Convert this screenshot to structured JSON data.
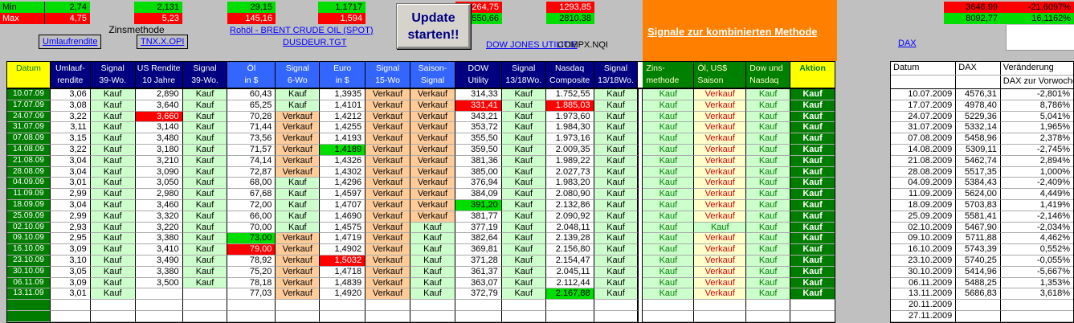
{
  "top": {
    "min_label": "Min",
    "max_label": "Max",
    "minmax": {
      "umlauf": {
        "min": "2,74",
        "max": "4,75"
      },
      "us_rendite": {
        "min": "2,131",
        "max": "5,23"
      },
      "oil": {
        "min": "29,15",
        "max": "145,16"
      },
      "euro": {
        "min": "1,1717",
        "max": "1,594"
      },
      "dow": {
        "min": "264,75",
        "max": "550,66"
      },
      "nasdaq": {
        "min": "1293,85",
        "max": "2810,38"
      },
      "dax": {
        "min": "3646,99",
        "max": "8092,77",
        "min_pct": "-21,6097%",
        "max_pct": "16,1162%"
      }
    },
    "zinsmethode_label": "Zinsmethode",
    "links": {
      "umlaufrendite": "Umlaufrendite",
      "tnx": "TNX.X.OPI",
      "rohoel": "Rohöl - BRENT CRUDE OIL (SPOT)",
      "dusdeur": "DUSDEUR.TGT",
      "dow_jones": "DOW JONES UTILITIE",
      "dax": "DAX"
    },
    "compx_label": "COMPX.NQI",
    "update_button": {
      "line1": "Update",
      "line2": "starten!!"
    },
    "banner": "Signale zur kombinierten Methode"
  },
  "colors": {
    "bright_green": "#00dd00",
    "red": "#ff0000",
    "dark_green": "#007d00",
    "light_green_signal": "#ccffcc",
    "peach_signal": "#ffcc99",
    "pale_yellow_signal": "#ffffcc",
    "navy_header": "#000080",
    "royal_blue_header": "#3366ff",
    "green_header": "#008000",
    "yellow": "#ffff00",
    "orange_banner": "#ff8000",
    "link_blue": "#0000ff"
  },
  "main_table": {
    "headers": [
      {
        "lines": [
          "Datum"
        ],
        "group": "yellow-datum"
      },
      {
        "lines": [
          "Umlauf-",
          "rendite"
        ],
        "group": "navy"
      },
      {
        "lines": [
          "Signal",
          "39-Wo."
        ],
        "group": "navy"
      },
      {
        "lines": [
          "US Rendite",
          "10 Jahre"
        ],
        "group": "navy"
      },
      {
        "lines": [
          "Signal",
          "39-Wo."
        ],
        "group": "navy"
      },
      {
        "lines": [
          "Öl",
          "in $"
        ],
        "group": "royal"
      },
      {
        "lines": [
          "Signal",
          "6-Wo"
        ],
        "group": "royal"
      },
      {
        "lines": [
          "Euro",
          "in $"
        ],
        "group": "royal"
      },
      {
        "lines": [
          "Signal",
          "15-Wo"
        ],
        "group": "royal"
      },
      {
        "lines": [
          "Saison-",
          "Signal"
        ],
        "group": "royal"
      },
      {
        "lines": [
          "DOW",
          "Utility"
        ],
        "group": "navy"
      },
      {
        "lines": [
          "Signal",
          "13/18Wo."
        ],
        "group": "navy"
      },
      {
        "lines": [
          "Nasdaq",
          "Composite"
        ],
        "group": "navy"
      },
      {
        "lines": [
          "Signal",
          "13/18Wo."
        ],
        "group": "navy"
      },
      {
        "lines": [
          "Zins-",
          "methode"
        ],
        "group": "green"
      },
      {
        "lines": [
          "Öl, US$",
          "Saison"
        ],
        "group": "green"
      },
      {
        "lines": [
          "Dow und",
          "Nasdaq"
        ],
        "group": "green"
      },
      {
        "lines": [
          "Aktion"
        ],
        "group": "yellow-action"
      }
    ],
    "rows": [
      [
        "10.07.09",
        "3,06",
        "Kauf",
        "2,890",
        "Kauf",
        "60,43",
        "Kauf",
        "1,3935",
        "Verkauf",
        "Verkauf",
        "314,33",
        "Kauf",
        "1.752,55",
        "Kauf",
        "Kauf",
        "Verkauf",
        "Kauf",
        "Kauf"
      ],
      [
        "17.07.09",
        "3,08",
        "Kauf",
        "3,640",
        "Kauf",
        "65,25",
        "Kauf",
        "1,4101",
        "Verkauf",
        "Verkauf",
        "331,41",
        "Kauf",
        "1.885,03",
        "Kauf",
        "Kauf",
        "Verkauf",
        "Kauf",
        "Kauf"
      ],
      [
        "24.07.09",
        "3,22",
        "Kauf",
        "3,660",
        "Kauf",
        "70,28",
        "Verkauf",
        "1,4212",
        "Verkauf",
        "Verkauf",
        "343,21",
        "Kauf",
        "1.973,60",
        "Kauf",
        "Kauf",
        "Verkauf",
        "Kauf",
        "Kauf"
      ],
      [
        "31.07.09",
        "3,11",
        "Kauf",
        "3,140",
        "Kauf",
        "71,44",
        "Verkauf",
        "1,4255",
        "Verkauf",
        "Verkauf",
        "353,72",
        "Kauf",
        "1.984,30",
        "Kauf",
        "Kauf",
        "Verkauf",
        "Kauf",
        "Kauf"
      ],
      [
        "07.08.09",
        "3,15",
        "Kauf",
        "3,480",
        "Kauf",
        "73,56",
        "Verkauf",
        "1,4193",
        "Verkauf",
        "Verkauf",
        "355,50",
        "Kauf",
        "1.973,16",
        "Kauf",
        "Kauf",
        "Verkauf",
        "Kauf",
        "Kauf"
      ],
      [
        "14.08.09",
        "3,22",
        "Kauf",
        "3,180",
        "Kauf",
        "71,57",
        "Verkauf",
        "1,4189",
        "Verkauf",
        "Verkauf",
        "359,50",
        "Kauf",
        "2.009,35",
        "Kauf",
        "Kauf",
        "Verkauf",
        "Kauf",
        "Kauf"
      ],
      [
        "21.08.09",
        "3,04",
        "Kauf",
        "3,210",
        "Kauf",
        "74,14",
        "Verkauf",
        "1,4326",
        "Verkauf",
        "Verkauf",
        "381,36",
        "Kauf",
        "1.989,22",
        "Kauf",
        "Kauf",
        "Verkauf",
        "Kauf",
        "Kauf"
      ],
      [
        "28.08.09",
        "3,04",
        "Kauf",
        "3,090",
        "Kauf",
        "72,87",
        "Verkauf",
        "1,4302",
        "Verkauf",
        "Verkauf",
        "385,00",
        "Kauf",
        "2.027,73",
        "Kauf",
        "Kauf",
        "Verkauf",
        "Kauf",
        "Kauf"
      ],
      [
        "04.09.09",
        "3,01",
        "Kauf",
        "3,050",
        "Kauf",
        "68,00",
        "Kauf",
        "1,4296",
        "Verkauf",
        "Verkauf",
        "376,94",
        "Kauf",
        "1.983,20",
        "Kauf",
        "Kauf",
        "Verkauf",
        "Kauf",
        "Kauf"
      ],
      [
        "11.09.09",
        "2,99",
        "Kauf",
        "2,980",
        "Kauf",
        "67,68",
        "Kauf",
        "1,4597",
        "Verkauf",
        "Verkauf",
        "384,09",
        "Kauf",
        "2.080,90",
        "Kauf",
        "Kauf",
        "Verkauf",
        "Kauf",
        "Kauf"
      ],
      [
        "18.09.09",
        "3,04",
        "Kauf",
        "3,460",
        "Kauf",
        "72,00",
        "Kauf",
        "1,4707",
        "Verkauf",
        "Verkauf",
        "391,20",
        "Kauf",
        "2.132,86",
        "Kauf",
        "Kauf",
        "Verkauf",
        "Kauf",
        "Kauf"
      ],
      [
        "25.09.09",
        "2,99",
        "Kauf",
        "3,320",
        "Kauf",
        "66,00",
        "Kauf",
        "1,4690",
        "Verkauf",
        "Verkauf",
        "381,77",
        "Kauf",
        "2.090,92",
        "Kauf",
        "Kauf",
        "Verkauf",
        "Kauf",
        "Kauf"
      ],
      [
        "02.10.09",
        "2,93",
        "Kauf",
        "3,220",
        "Kauf",
        "70,00",
        "Kauf",
        "1,4575",
        "Verkauf",
        "Kauf",
        "377,19",
        "Kauf",
        "2.048,11",
        "Kauf",
        "Kauf",
        "Kauf",
        "Kauf",
        "Kauf"
      ],
      [
        "09.10.09",
        "2,95",
        "Kauf",
        "3,380",
        "Kauf",
        "73,00",
        "Verkauf",
        "1,4719",
        "Verkauf",
        "Kauf",
        "382,64",
        "Kauf",
        "2.139,28",
        "Kauf",
        "Kauf",
        "Verkauf",
        "Kauf",
        "Kauf"
      ],
      [
        "16.10.09",
        "3,09",
        "Kauf",
        "3,410",
        "Kauf",
        "79,00",
        "Verkauf",
        "1,4902",
        "Verkauf",
        "Kauf",
        "369,81",
        "Kauf",
        "2.156,80",
        "Kauf",
        "Kauf",
        "Verkauf",
        "Kauf",
        "Kauf"
      ],
      [
        "23.10.09",
        "3,10",
        "Kauf",
        "3,490",
        "Kauf",
        "78,92",
        "Verkauf",
        "1,5032",
        "Verkauf",
        "Kauf",
        "371,28",
        "Kauf",
        "2.154,47",
        "Kauf",
        "Kauf",
        "Verkauf",
        "Kauf",
        "Kauf"
      ],
      [
        "30.10.09",
        "3,05",
        "Kauf",
        "3,380",
        "Kauf",
        "75,20",
        "Verkauf",
        "1,4718",
        "Verkauf",
        "Kauf",
        "361,37",
        "Kauf",
        "2.045,11",
        "Kauf",
        "Kauf",
        "Verkauf",
        "Kauf",
        "Kauf"
      ],
      [
        "06.11.09",
        "3,09",
        "Kauf",
        "3,500",
        "Kauf",
        "78,18",
        "Verkauf",
        "1,4839",
        "Verkauf",
        "Kauf",
        "363,07",
        "Kauf",
        "2.112,44",
        "Kauf",
        "Kauf",
        "Verkauf",
        "Kauf",
        "Kauf"
      ],
      [
        "13.11.09",
        "3,01",
        "Kauf",
        "",
        "",
        "77,03",
        "Verkauf",
        "1,4920",
        "Verkauf",
        "Kauf",
        "372,79",
        "Kauf",
        "2.167,88",
        "Kauf",
        "Kauf",
        "Verkauf",
        "Kauf",
        "Kauf"
      ],
      [
        "",
        "",
        "",
        "",
        "",
        "",
        "",
        "",
        "",
        "",
        "",
        "",
        "",
        "",
        "",
        "",
        "",
        ""
      ],
      [
        "",
        "",
        "",
        "",
        "",
        "",
        "",
        "",
        "",
        "",
        "",
        "",
        "",
        "",
        "",
        "",
        "",
        ""
      ]
    ],
    "highlights": {
      "1-10": "red",
      "1-12": "red",
      "2-3": "red",
      "5-7": "green",
      "10-10": "green",
      "13-5": "green",
      "14-5": "red",
      "15-7": "red",
      "18-12": "green"
    }
  },
  "dax_table": {
    "headers": {
      "datum": "Datum",
      "dax": "DAX",
      "veraenderung": "Veränderung",
      "sub": "DAX zur Vorwoche"
    },
    "rows": [
      [
        "10.07.2009",
        "4576,31",
        "-2,801%"
      ],
      [
        "17.07.2009",
        "4978,40",
        "8,786%"
      ],
      [
        "24.07.2009",
        "5229,36",
        "5,041%"
      ],
      [
        "31.07.2009",
        "5332,14",
        "1,965%"
      ],
      [
        "07.08.2009",
        "5458,96",
        "2,378%"
      ],
      [
        "14.08.2009",
        "5309,11",
        "-2,745%"
      ],
      [
        "21.08.2009",
        "5462,74",
        "2,894%"
      ],
      [
        "28.08.2009",
        "5517,35",
        "1,000%"
      ],
      [
        "04.09.2009",
        "5384,43",
        "-2,409%"
      ],
      [
        "11.09.2009",
        "5624,00",
        "4,449%"
      ],
      [
        "18.09.2009",
        "5703,83",
        "1,419%"
      ],
      [
        "25.09.2009",
        "5581,41",
        "-2,146%"
      ],
      [
        "02.10.2009",
        "5467,90",
        "-2,034%"
      ],
      [
        "09.10.2009",
        "5711,88",
        "4,462%"
      ],
      [
        "16.10.2009",
        "5743,39",
        "0,552%"
      ],
      [
        "23.10.2009",
        "5740,25",
        "-0,055%"
      ],
      [
        "30.10.2009",
        "5414,96",
        "-5,667%"
      ],
      [
        "06.11.2009",
        "5488,25",
        "1,353%"
      ],
      [
        "13.11.2009",
        "5686,83",
        "3,618%"
      ],
      [
        "20.11.2009",
        "",
        ""
      ],
      [
        "27.11.2009",
        "",
        ""
      ]
    ]
  }
}
